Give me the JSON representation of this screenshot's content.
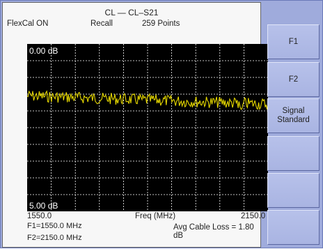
{
  "screen": {
    "title": "CL — CL–S21",
    "flexcal": "FlexCal ON",
    "recall": "Recall",
    "points": "259 Points"
  },
  "plot": {
    "top_label": "0.00 dB",
    "bottom_label": "5.00 dB",
    "trace_color": "#e6d800",
    "grid": true
  },
  "axis": {
    "start": "1550.0",
    "label": "Freq (MHz)",
    "stop": "2150.0"
  },
  "markers": {
    "f1": "F1=1550.0 MHz",
    "f2": "F2=2150.0 MHz",
    "avg_loss": "Avg Cable Loss = 1.80 dB"
  },
  "softkeys": [
    "F1",
    "F2",
    "Signal\nStandard",
    "",
    "",
    ""
  ]
}
